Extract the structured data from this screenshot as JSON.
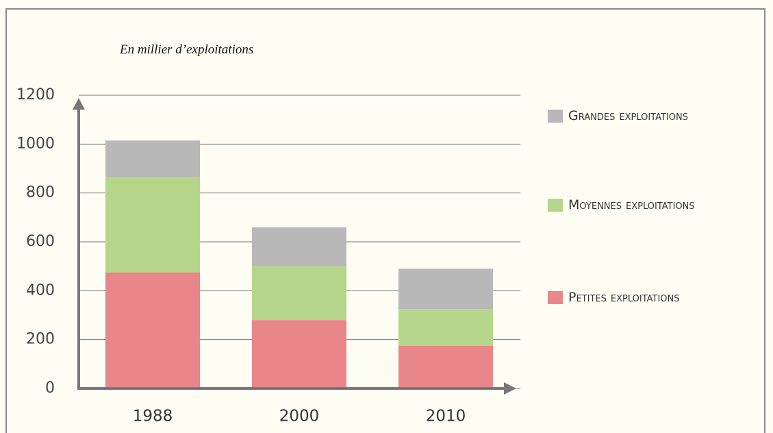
{
  "chart_data": {
    "type": "stacked_bar",
    "subtitle": "En millier d’exploitations",
    "categories": [
      "1988",
      "2000",
      "2010"
    ],
    "series": [
      {
        "name": "Petites exploitations",
        "color": "#e8868a",
        "values": [
          475,
          280,
          175
        ]
      },
      {
        "name": "Moyennes exploitations",
        "color": "#b5d68a",
        "values": [
          390,
          220,
          150
        ]
      },
      {
        "name": "Grandes exploitations",
        "color": "#b8b8b8",
        "values": [
          150,
          160,
          165
        ]
      }
    ],
    "ylim": [
      0,
      1200
    ],
    "yticks": [
      0,
      200,
      400,
      600,
      800,
      1000,
      1200
    ],
    "grid": true
  }
}
